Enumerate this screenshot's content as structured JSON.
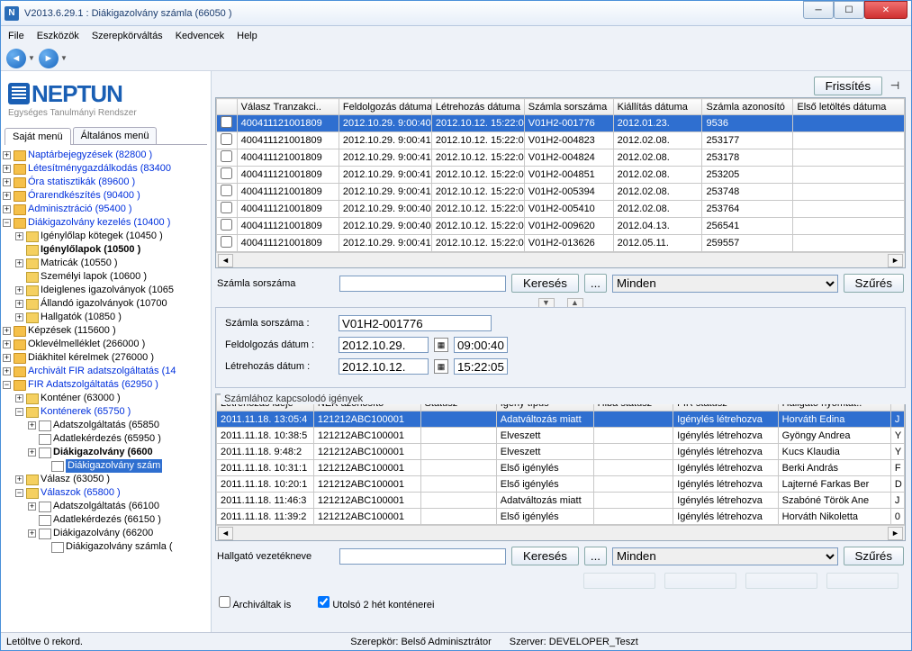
{
  "window": {
    "title": "V2013.6.29.1 : Diákigazolvány számla (66050 )"
  },
  "menu": [
    "File",
    "Eszközök",
    "Szerepkörváltás",
    "Kedvencek",
    "Help"
  ],
  "logo": {
    "main": "NEPTUN",
    "sub": "Egységes Tanulmányi Rendszer"
  },
  "sidetabs": {
    "active": "Saját menü",
    "other": "Általános menü"
  },
  "tree": [
    {
      "lvl": 0,
      "exp": "+",
      "ic": "folder",
      "txt": "Naptárbejegyzések (82800 )",
      "link": true
    },
    {
      "lvl": 0,
      "exp": "+",
      "ic": "folder",
      "txt": "Létesítménygazdálkodás (83400",
      "link": true
    },
    {
      "lvl": 0,
      "exp": "+",
      "ic": "folder",
      "txt": "Óra statisztikák (89600 )",
      "link": true
    },
    {
      "lvl": 0,
      "exp": "+",
      "ic": "folder",
      "txt": "Órarendkészítés (90400 )",
      "link": true
    },
    {
      "lvl": 0,
      "exp": "+",
      "ic": "folder",
      "txt": "Adminisztráció (95400 )",
      "link": true
    },
    {
      "lvl": 0,
      "exp": "−",
      "ic": "folder",
      "txt": "Diákigazolvány kezelés (10400 )",
      "link": true
    },
    {
      "lvl": 1,
      "exp": "+",
      "ic": "yellow",
      "txt": "Igénylőlap kötegek (10450 )",
      "link": false
    },
    {
      "lvl": 1,
      "exp": "",
      "ic": "yellow",
      "txt": "Igénylőlapok (10500 )",
      "link": false,
      "bold": true
    },
    {
      "lvl": 1,
      "exp": "+",
      "ic": "yellow",
      "txt": "Matricák (10550 )",
      "link": false
    },
    {
      "lvl": 1,
      "exp": "",
      "ic": "yellow",
      "txt": "Személyi lapok (10600 )",
      "link": false
    },
    {
      "lvl": 1,
      "exp": "+",
      "ic": "yellow",
      "txt": "Ideiglenes igazolványok (1065",
      "link": false
    },
    {
      "lvl": 1,
      "exp": "+",
      "ic": "yellow",
      "txt": "Állandó igazolványok (10700",
      "link": false
    },
    {
      "lvl": 1,
      "exp": "+",
      "ic": "yellow",
      "txt": "Hallgatók (10850 )",
      "link": false
    },
    {
      "lvl": 0,
      "exp": "+",
      "ic": "folder",
      "txt": "Képzések (115600 )",
      "link": false
    },
    {
      "lvl": 0,
      "exp": "+",
      "ic": "folder",
      "txt": "Oklevélmelléklet (266000 )",
      "link": false
    },
    {
      "lvl": 0,
      "exp": "+",
      "ic": "folder",
      "txt": "Diákhitel kérelmek (276000 )",
      "link": false
    },
    {
      "lvl": 0,
      "exp": "+",
      "ic": "folder",
      "txt": "Archivált FIR adatszolgáltatás (14",
      "link": true
    },
    {
      "lvl": 0,
      "exp": "−",
      "ic": "folder",
      "txt": "FIR Adatszolgáltatás (62950 )",
      "link": true
    },
    {
      "lvl": 1,
      "exp": "+",
      "ic": "yellow",
      "txt": "Konténer (63000 )",
      "link": false
    },
    {
      "lvl": 1,
      "exp": "−",
      "ic": "yellow",
      "txt": "Konténerek (65750 )",
      "link": true
    },
    {
      "lvl": 2,
      "exp": "+",
      "ic": "page",
      "txt": "Adatszolgáltatás (65850",
      "link": false
    },
    {
      "lvl": 2,
      "exp": "",
      "ic": "page",
      "txt": "Adatlekérdezés (65950 )",
      "link": false
    },
    {
      "lvl": 2,
      "exp": "+",
      "ic": "page",
      "txt": "Diákigazolvány (6600",
      "link": false,
      "bold": true
    },
    {
      "lvl": 3,
      "exp": "",
      "ic": "page",
      "txt": "Diákigazolvány szám",
      "link": false,
      "sel": true
    },
    {
      "lvl": 1,
      "exp": "+",
      "ic": "yellow",
      "txt": "Válasz (63050 )",
      "link": false
    },
    {
      "lvl": 1,
      "exp": "−",
      "ic": "yellow",
      "txt": "Válaszok (65800 )",
      "link": true
    },
    {
      "lvl": 2,
      "exp": "+",
      "ic": "page",
      "txt": "Adatszolgáltatás (66100",
      "link": false
    },
    {
      "lvl": 2,
      "exp": "",
      "ic": "page",
      "txt": "Adatlekérdezés (66150 )",
      "link": false
    },
    {
      "lvl": 2,
      "exp": "+",
      "ic": "page",
      "txt": "Diákigazolvány (66200",
      "link": false
    },
    {
      "lvl": 3,
      "exp": "",
      "ic": "page",
      "txt": "Diákigazolvány számla (",
      "link": false
    }
  ],
  "refresh_btn": "Frissítés",
  "grid1": {
    "cols": [
      "",
      "Válasz Tranzakci..",
      "Feldolgozás dátuma",
      "Létrehozás dátuma",
      "Számla sorszáma",
      "Kiállítás dátuma",
      "Számla azonosító",
      "Első letöltés dátuma"
    ],
    "widths": [
      22,
      110,
      100,
      100,
      96,
      96,
      98,
      120
    ],
    "rows": [
      [
        "",
        "400411121001809",
        "2012.10.29. 9:00:40",
        "2012.10.12. 15:22:0",
        "V01H2-001776",
        "2012.01.23.",
        "9536",
        ""
      ],
      [
        "",
        "400411121001809",
        "2012.10.29. 9:00:41",
        "2012.10.12. 15:22:0",
        "V01H2-004823",
        "2012.02.08.",
        "253177",
        ""
      ],
      [
        "",
        "400411121001809",
        "2012.10.29. 9:00:41",
        "2012.10.12. 15:22:0",
        "V01H2-004824",
        "2012.02.08.",
        "253178",
        ""
      ],
      [
        "",
        "400411121001809",
        "2012.10.29. 9:00:41",
        "2012.10.12. 15:22:0",
        "V01H2-004851",
        "2012.02.08.",
        "253205",
        ""
      ],
      [
        "",
        "400411121001809",
        "2012.10.29. 9:00:41",
        "2012.10.12. 15:22:0",
        "V01H2-005394",
        "2012.02.08.",
        "253748",
        ""
      ],
      [
        "",
        "400411121001809",
        "2012.10.29. 9:00:40",
        "2012.10.12. 15:22:0",
        "V01H2-005410",
        "2012.02.08.",
        "253764",
        ""
      ],
      [
        "",
        "400411121001809",
        "2012.10.29. 9:00:40",
        "2012.10.12. 15:22:0",
        "V01H2-009620",
        "2012.04.13.",
        "256541",
        ""
      ],
      [
        "",
        "400411121001809",
        "2012.10.29. 9:00:41",
        "2012.10.12. 15:22:0",
        "V01H2-013626",
        "2012.05.11.",
        "259557",
        ""
      ]
    ],
    "sel": 0
  },
  "search1": {
    "label": "Számla sorszáma",
    "btn": "Keresés",
    "more": "...",
    "filter": "Minden",
    "szures": "Szűrés"
  },
  "form": {
    "l1": "Számla sorszáma :",
    "v1": "V01H2-001776",
    "l2": "Feldolgozás dátum :",
    "d2": "2012.10.29.",
    "t2": "09:00:40",
    "l3": "Létrehozás dátum :",
    "d3": "2012.10.12.",
    "t3": "15:22:05"
  },
  "group2": "Számlához kapcsolodó igények",
  "grid2": {
    "cols": [
      "Létrehozás ideje",
      "NEK azonosító",
      "Státusz",
      "Igény típus",
      "Hiba státusz",
      "FIR státusz",
      "Hallgató nyomtat..",
      ""
    ],
    "widths": [
      100,
      110,
      78,
      100,
      82,
      108,
      116,
      14
    ],
    "rows": [
      [
        "2011.11.18. 13:05:4",
        "121212ABC100001",
        "",
        "Adatváltozás miatt",
        "",
        "Igénylés létrehozva",
        "Horváth Edina",
        "J"
      ],
      [
        "2011.11.18. 10:38:5",
        "121212ABC100001",
        "",
        "Elveszett",
        "",
        "Igénylés létrehozva",
        "Gyöngy Andrea",
        "Y"
      ],
      [
        "2011.11.18. 9:48:2",
        "121212ABC100001",
        "",
        "Elveszett",
        "",
        "Igénylés létrehozva",
        "Kucs Klaudia",
        "Y"
      ],
      [
        "2011.11.18. 10:31:1",
        "121212ABC100001",
        "",
        "Első igénylés",
        "",
        "Igénylés létrehozva",
        "Berki András",
        "F"
      ],
      [
        "2011.11.18. 10:20:1",
        "121212ABC100001",
        "",
        "Első igénylés",
        "",
        "Igénylés létrehozva",
        "Lajterné Farkas Ber",
        "D"
      ],
      [
        "2011.11.18. 11:46:3",
        "121212ABC100001",
        "",
        "Adatváltozás miatt",
        "",
        "Igénylés létrehozva",
        "Szabóné Török Ane",
        "J"
      ],
      [
        "2011.11.18. 11:39:2",
        "121212ABC100001",
        "",
        "Első igénylés",
        "",
        "Igénylés létrehozva",
        "Horváth Nikoletta",
        "0"
      ]
    ],
    "sel": 0
  },
  "search2": {
    "label": "Hallgató vezetékneve",
    "btn": "Keresés",
    "more": "...",
    "filter": "Minden",
    "szures": "Szűrés"
  },
  "checks": {
    "c1": "Archiváltak is",
    "c2": "Utolsó 2 hét konténerei"
  },
  "status": {
    "left": "Letöltve 0 rekord.",
    "mid1": "Szerepkör: Belső Adminisztrátor",
    "mid2": "Szerver: DEVELOPER_Teszt"
  }
}
